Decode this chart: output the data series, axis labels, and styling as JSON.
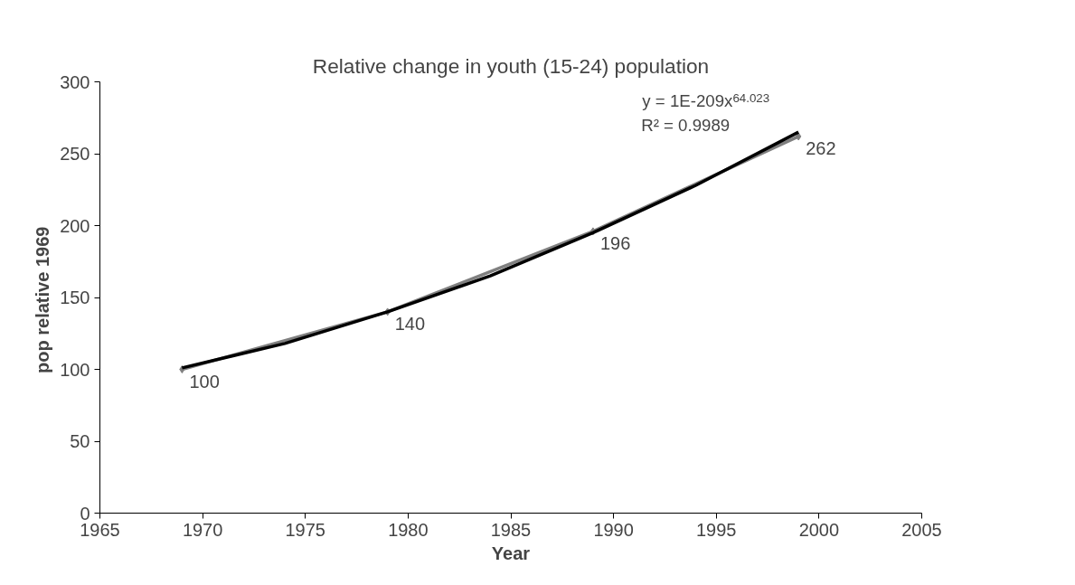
{
  "chart_data": {
    "type": "line",
    "title": "Relative change in youth (15-24) population",
    "xlabel": "Year",
    "ylabel": "pop relative  1969",
    "series": [
      {
        "color": "#808080",
        "x": [
          1969,
          1979,
          1989,
          1999
        ],
        "values": [
          100,
          140,
          196,
          262
        ],
        "marker": "diamond",
        "data_labels": true
      },
      {
        "type": "line",
        "color": "#000000",
        "x": [
          1969,
          1974,
          1979,
          1984,
          1989,
          1994,
          1999
        ],
        "values": [
          101,
          118,
          140,
          165,
          195,
          228,
          265
        ],
        "marker": "none"
      }
    ],
    "annotations": [
      "y = 1E-209x$^{64.023}$",
      "R² = 0.9989"
    ],
    "xlim": [
      1965,
      2005
    ],
    "xticks": [
      1965,
      1970,
      1975,
      1980,
      1985,
      1990,
      1995,
      2000,
      2005
    ],
    "ylim": [
      0,
      300
    ],
    "yticks": [
      0,
      50,
      100,
      150,
      200,
      250,
      300
    ],
    "grid": false
  }
}
